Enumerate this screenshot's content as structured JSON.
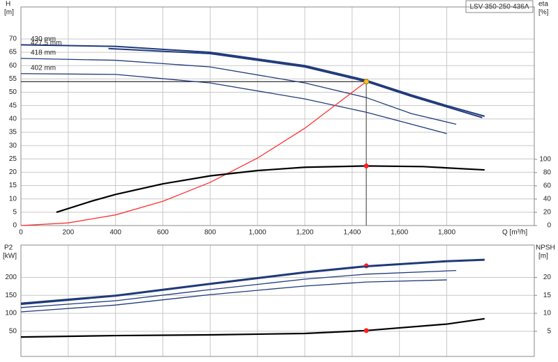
{
  "chart_data": [
    {
      "type": "line",
      "model": "LSV 350-250-436A",
      "y_label": "H",
      "y_unit": "[m]",
      "y2_label": "eta",
      "y2_unit": "[%]",
      "x_label": "Q [m³/h]",
      "xlim": [
        0,
        2170
      ],
      "ylim": [
        0,
        82
      ],
      "y2lim": [
        0,
        330
      ],
      "xticks": [
        0,
        200,
        400,
        600,
        800,
        {
          "value": 1000,
          "label": "1,000"
        },
        {
          "value": 1200,
          "label": "1,200"
        },
        {
          "value": 1400,
          "label": "1,400"
        },
        {
          "value": 1600,
          "label": "1,600"
        },
        {
          "value": 1800,
          "label": "1,800"
        }
      ],
      "yticks": [
        0,
        5,
        10,
        15,
        20,
        25,
        30,
        35,
        40,
        45,
        50,
        55,
        60,
        65,
        70
      ],
      "y2ticks": [
        0,
        20,
        40,
        60,
        80,
        100
      ],
      "grid": true,
      "duty_point": {
        "x": 1460,
        "y": 54
      },
      "series": [
        {
          "name": "430 mm",
          "color": "#1f3a7a",
          "x": [
            0,
            400,
            800,
            1200,
            1460,
            1650,
            1800,
            1960
          ],
          "values": [
            67.8,
            67.2,
            65,
            60,
            54.5,
            49,
            45,
            41
          ]
        },
        {
          "name": "427.5 mm",
          "color": "#1f3a7a",
          "x": [
            370,
            800,
            1200,
            1460,
            1650,
            1800,
            1950
          ],
          "values": [
            66.4,
            64.5,
            59.5,
            54,
            48.5,
            44.5,
            40.5
          ]
        },
        {
          "name": "418 mm",
          "color": "#1f3a7a",
          "x": [
            0,
            400,
            800,
            1200,
            1460,
            1650,
            1840
          ],
          "values": [
            62.7,
            62,
            59.5,
            53.5,
            48,
            42,
            38
          ]
        },
        {
          "name": "402 mm",
          "color": "#1f3a7a",
          "x": [
            0,
            400,
            800,
            1200,
            1460,
            1800
          ],
          "values": [
            57,
            56.7,
            53.5,
            47.5,
            42.5,
            34.5
          ]
        },
        {
          "color": "#ff3030",
          "x": [
            0,
            200,
            400,
            600,
            800,
            1000,
            1200,
            1460
          ],
          "values": [
            0,
            1,
            4,
            9.1,
            16.2,
            25.3,
            36.5,
            54
          ]
        },
        {
          "color": "#000000",
          "axis": "y2",
          "x": [
            150,
            300,
            400,
            600,
            800,
            1000,
            1200,
            1460,
            1700,
            1960
          ],
          "values": [
            20,
            37,
            47,
            63,
            75,
            83,
            88,
            90,
            89,
            84
          ]
        }
      ]
    },
    {
      "type": "line",
      "y_label": "P2",
      "y_unit": "[kW]",
      "y2_label": "NPSH",
      "y2_unit": "[m]",
      "xlim": [
        0,
        2170
      ],
      "ylim": [
        -20,
        290
      ],
      "y2lim": [
        -2,
        29
      ],
      "xticks": [
        0,
        200,
        400,
        600,
        800,
        1000,
        1200,
        1400,
        1600,
        1800
      ],
      "xtick_labels": false,
      "yticks": [
        50,
        100,
        150,
        200
      ],
      "y2ticks": [
        5,
        10,
        15,
        20
      ],
      "grid": true,
      "series": [
        {
          "color": "#1f3a7a",
          "x": [
            0,
            400,
            800,
            1200,
            1460,
            1800,
            1960
          ],
          "values": [
            128,
            150,
            183,
            215,
            232,
            246,
            250
          ]
        },
        {
          "color": "#1f3a7a",
          "x": [
            0,
            400,
            800,
            1200,
            1460,
            1800,
            1960
          ],
          "values": [
            125,
            148,
            181,
            213,
            230,
            244,
            248
          ]
        },
        {
          "color": "#1f3a7a",
          "x": [
            0,
            400,
            800,
            1200,
            1460,
            1800,
            1840
          ],
          "values": [
            116,
            135,
            166,
            195,
            209,
            218,
            219
          ]
        },
        {
          "color": "#1f3a7a",
          "x": [
            0,
            400,
            800,
            1200,
            1460,
            1800
          ],
          "values": [
            104,
            123,
            152,
            176,
            187,
            193
          ]
        },
        {
          "color": "#000000",
          "axis": "y2",
          "x": [
            0,
            400,
            800,
            1200,
            1460,
            1800,
            1960
          ],
          "values": [
            3.4,
            3.8,
            4.0,
            4.4,
            5.2,
            7.0,
            8.5
          ]
        }
      ]
    }
  ]
}
